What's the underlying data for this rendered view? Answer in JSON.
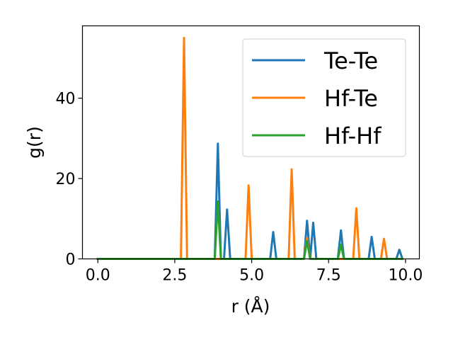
{
  "chart_data": {
    "type": "line",
    "xlabel": "r (Å)",
    "ylabel": "g(r)",
    "xlim": [
      -0.5,
      10.45
    ],
    "ylim": [
      0,
      58
    ],
    "xticks": [
      0.0,
      2.5,
      5.0,
      7.5,
      10.0
    ],
    "xtick_labels": [
      "0.0",
      "2.5",
      "5.0",
      "7.5",
      "10.0"
    ],
    "yticks": [
      0,
      20,
      40
    ],
    "ytick_labels": [
      "0",
      "20",
      "40"
    ],
    "grid": false,
    "legend_position": "top-right",
    "series": [
      {
        "name": "Te-Te",
        "color": "#1f77b4",
        "x": [
          0.0,
          3.8,
          3.9,
          4.0,
          4.1,
          4.2,
          4.3,
          5.6,
          5.7,
          5.8,
          6.7,
          6.8,
          6.9,
          7.0,
          7.1,
          7.8,
          7.9,
          8.0,
          8.8,
          8.9,
          9.0,
          9.7,
          9.8,
          9.9
        ],
        "values": [
          0,
          0,
          28.7,
          0,
          0,
          12.3,
          0,
          0,
          6.7,
          0,
          0,
          9.5,
          0,
          9.0,
          0,
          0,
          7.1,
          0,
          0,
          5.5,
          0,
          0,
          2.3,
          0
        ]
      },
      {
        "name": "Hf-Te",
        "color": "#ff7f0e",
        "x": [
          0.0,
          2.7,
          2.8,
          2.9,
          4.8,
          4.9,
          5.0,
          6.2,
          6.3,
          6.4,
          6.7,
          6.8,
          6.9,
          8.3,
          8.4,
          8.5,
          9.2,
          9.3,
          9.4,
          9.9
        ],
        "values": [
          0,
          0,
          55.0,
          0,
          0,
          18.3,
          0,
          0,
          22.3,
          0,
          0,
          5.2,
          0,
          0,
          12.6,
          0,
          0,
          5.0,
          0,
          0
        ]
      },
      {
        "name": "Hf-Hf",
        "color": "#2ca02c",
        "x": [
          0.0,
          3.8,
          3.9,
          4.0,
          6.7,
          6.8,
          6.9,
          7.8,
          7.9,
          8.0,
          9.9
        ],
        "values": [
          0,
          0,
          14.3,
          0,
          0,
          4.5,
          0,
          0,
          3.5,
          0,
          0
        ]
      }
    ]
  }
}
